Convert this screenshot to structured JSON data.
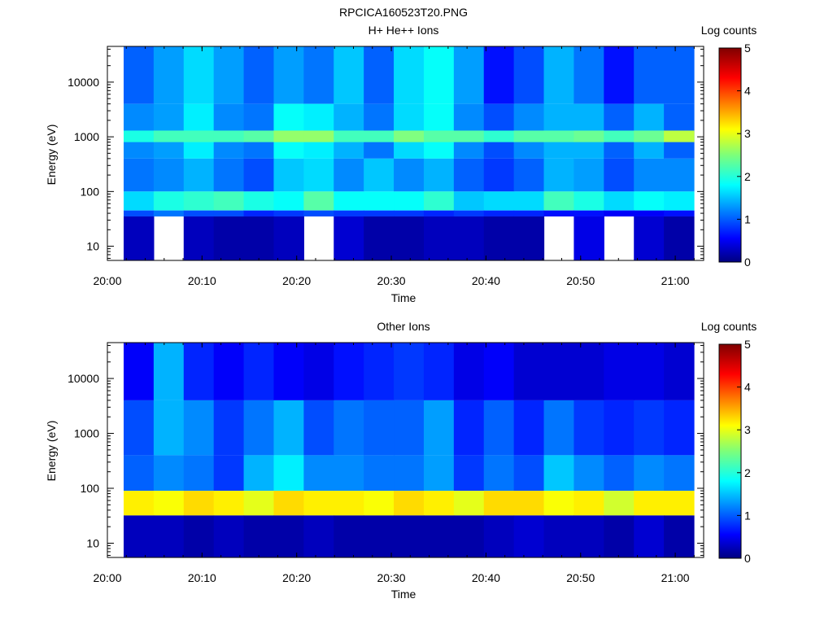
{
  "figure_title": "RPCICA160523T20.PNG",
  "colorbar": {
    "label": "Log counts",
    "min": 0,
    "max": 5,
    "ticks": [
      "0",
      "1",
      "2",
      "3",
      "4",
      "5"
    ],
    "colormap": "jet"
  },
  "chart_data": [
    {
      "type": "heatmap",
      "title": "H+ He++ Ions",
      "xlabel": "Time",
      "ylabel": "Energy (eV)",
      "yscale": "log",
      "ylim": [
        5.5,
        45000
      ],
      "xlim": [
        "20:00",
        "21:03"
      ],
      "x_ticks": [
        "20:00",
        "20:10",
        "20:20",
        "20:30",
        "20:40",
        "20:50",
        "21:00"
      ],
      "y_ticks": [
        "10",
        "100",
        "1000",
        "10000"
      ],
      "time_bins": [
        "20:01:36",
        "20:04:48",
        "20:08:00",
        "20:11:12",
        "20:14:24",
        "20:17:36",
        "20:20:48",
        "20:24:00",
        "20:27:12",
        "20:30:24",
        "20:33:36",
        "20:36:48",
        "20:40:00",
        "20:43:12",
        "20:46:24",
        "20:49:36",
        "20:52:48",
        "20:56:00",
        "20:59:12"
      ],
      "energy_bands": [
        {
          "e_min": 4000,
          "e_max": 45000,
          "log_counts": [
            1.1,
            1.4,
            1.7,
            1.4,
            1.1,
            1.4,
            1.2,
            1.6,
            1.1,
            1.7,
            1.9,
            1.4,
            0.7,
            1.0,
            1.5,
            1.2,
            0.7,
            1.1,
            1.1
          ]
        },
        {
          "e_min": 400,
          "e_max": 4000,
          "log_counts": [
            1.3,
            1.4,
            1.8,
            1.3,
            1.2,
            1.9,
            1.8,
            1.5,
            1.2,
            1.7,
            1.9,
            1.3,
            1.0,
            1.3,
            1.5,
            1.5,
            1.1,
            1.5,
            1.1
          ]
        },
        {
          "e_min": 800,
          "e_max": 1300,
          "log_counts": [
            2.0,
            2.2,
            2.2,
            2.2,
            2.3,
            2.6,
            2.6,
            2.2,
            2.2,
            2.5,
            2.3,
            2.3,
            2.1,
            2.3,
            2.3,
            2.4,
            2.2,
            2.4,
            2.8
          ]
        },
        {
          "e_min": 100,
          "e_max": 400,
          "log_counts": [
            1.2,
            1.3,
            1.5,
            1.2,
            1.0,
            1.6,
            1.7,
            1.3,
            1.6,
            1.3,
            1.5,
            1.1,
            0.9,
            1.1,
            1.5,
            1.4,
            1.0,
            1.3,
            1.3
          ]
        },
        {
          "e_min": 45,
          "e_max": 100,
          "log_counts": [
            1.7,
            2.0,
            2.1,
            2.2,
            2.0,
            1.9,
            2.3,
            1.9,
            1.9,
            1.9,
            2.1,
            1.6,
            1.7,
            1.7,
            2.2,
            2.0,
            1.7,
            1.9,
            1.8
          ]
        },
        {
          "e_min": 35,
          "e_max": 45,
          "log_counts": [
            1.0,
            1.2,
            1.0,
            1.0,
            0.8,
            0.9,
            1.0,
            0.9,
            0.9,
            0.9,
            0.8,
            0.9,
            0.8,
            0.8,
            0.7,
            0.7,
            0.6,
            0.6,
            0.7
          ]
        },
        {
          "e_min": 5.5,
          "e_max": 35,
          "log_counts": [
            0.3,
            null,
            0.3,
            0.2,
            0.2,
            0.3,
            null,
            0.4,
            0.2,
            0.2,
            0.3,
            0.3,
            0.2,
            0.2,
            null,
            0.5,
            null,
            0.4,
            0.2
          ]
        }
      ]
    },
    {
      "type": "heatmap",
      "title": "Other Ions",
      "xlabel": "Time",
      "ylabel": "Energy (eV)",
      "yscale": "log",
      "ylim": [
        5.5,
        45000
      ],
      "xlim": [
        "20:00",
        "21:03"
      ],
      "x_ticks": [
        "20:00",
        "20:10",
        "20:20",
        "20:30",
        "20:40",
        "20:50",
        "21:00"
      ],
      "y_ticks": [
        "10",
        "100",
        "1000",
        "10000"
      ],
      "time_bins": [
        "20:01:36",
        "20:04:48",
        "20:08:00",
        "20:11:12",
        "20:14:24",
        "20:17:36",
        "20:20:48",
        "20:24:00",
        "20:27:12",
        "20:30:24",
        "20:33:36",
        "20:36:48",
        "20:40:00",
        "20:43:12",
        "20:46:24",
        "20:49:36",
        "20:52:48",
        "20:56:00",
        "20:59:12"
      ],
      "energy_bands": [
        {
          "e_min": 4000,
          "e_max": 45000,
          "log_counts": [
            0.6,
            1.5,
            0.8,
            0.6,
            0.8,
            0.6,
            0.5,
            0.7,
            0.8,
            0.9,
            0.8,
            0.5,
            0.6,
            0.4,
            0.4,
            0.4,
            0.5,
            0.5,
            0.4
          ]
        },
        {
          "e_min": 400,
          "e_max": 4000,
          "log_counts": [
            1.0,
            1.5,
            1.3,
            0.9,
            1.2,
            1.5,
            1.0,
            1.2,
            1.1,
            1.1,
            1.4,
            0.8,
            1.1,
            0.8,
            1.2,
            0.9,
            0.8,
            0.9,
            0.8
          ]
        },
        {
          "e_min": 90,
          "e_max": 400,
          "log_counts": [
            1.1,
            1.3,
            1.2,
            0.9,
            1.5,
            1.8,
            1.3,
            1.3,
            1.2,
            1.2,
            1.4,
            0.9,
            1.2,
            1.0,
            1.6,
            1.3,
            1.1,
            1.3,
            1.2
          ]
        },
        {
          "e_min": 32,
          "e_max": 90,
          "log_counts": [
            3.2,
            3.1,
            3.3,
            3.2,
            3.0,
            3.3,
            3.2,
            3.2,
            3.1,
            3.3,
            3.2,
            3.0,
            3.3,
            3.3,
            3.1,
            3.2,
            2.9,
            3.2,
            3.2
          ]
        },
        {
          "e_min": 5.5,
          "e_max": 32,
          "log_counts": [
            0.3,
            0.3,
            0.2,
            0.3,
            0.2,
            0.2,
            0.3,
            0.2,
            0.2,
            0.2,
            0.2,
            0.2,
            0.3,
            0.4,
            0.3,
            0.3,
            0.2,
            0.4,
            0.2
          ]
        }
      ]
    }
  ]
}
